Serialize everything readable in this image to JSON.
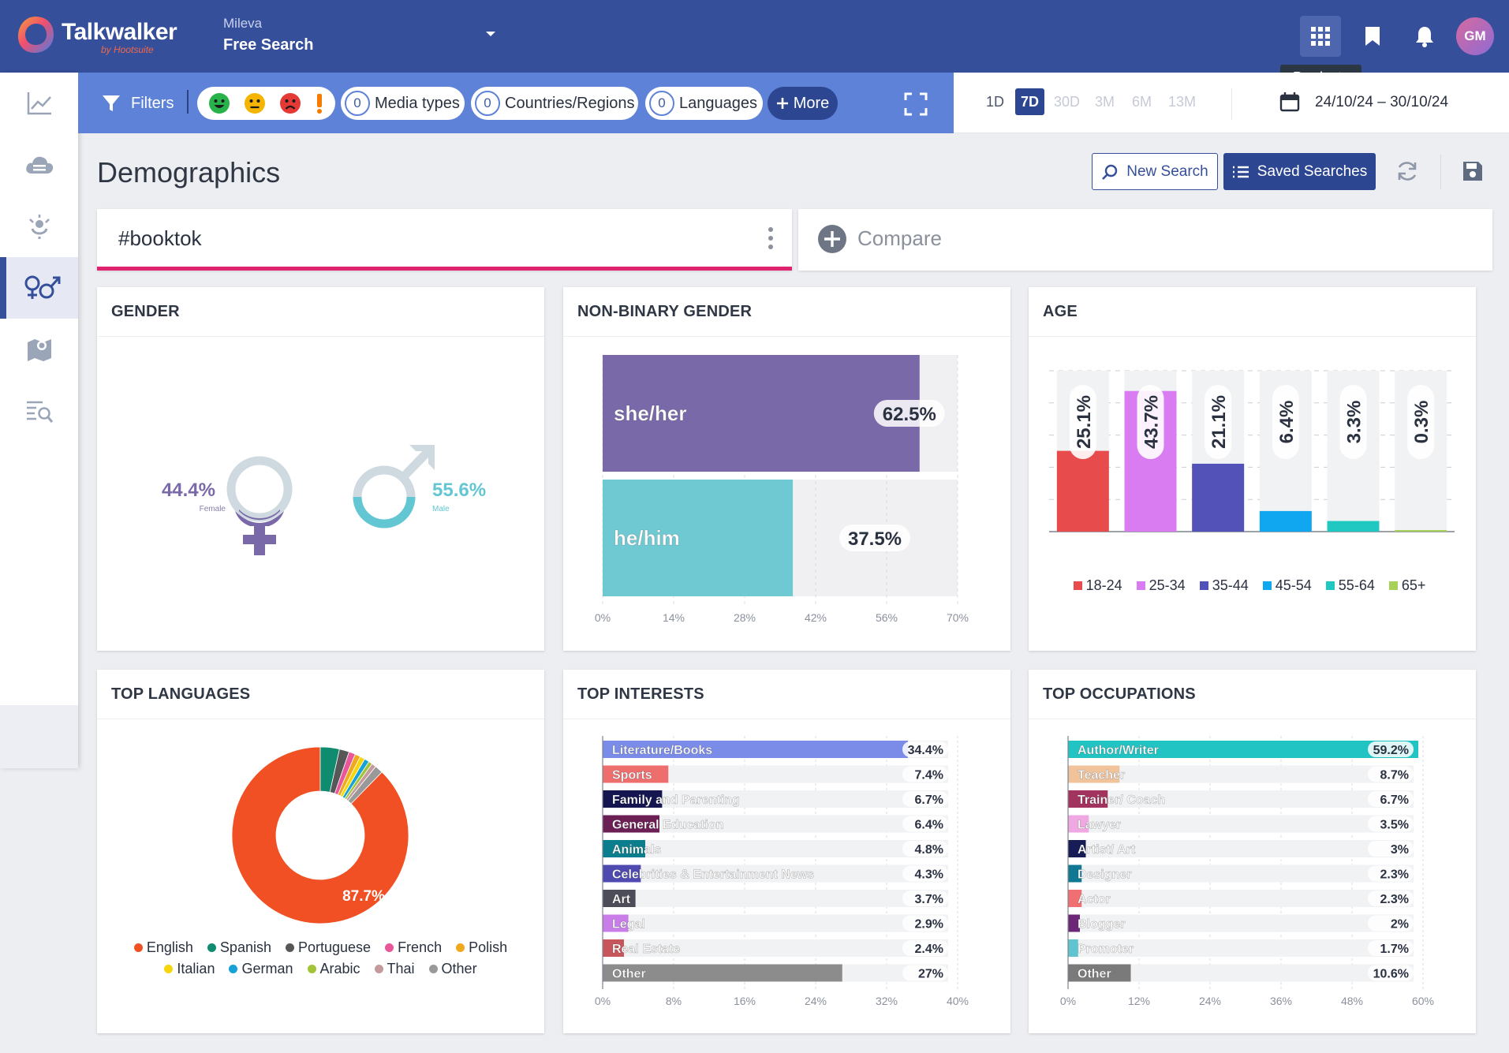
{
  "header": {
    "brand": "Talkwalker",
    "brand_sub": "by Hootsuite",
    "project": "Mileva",
    "search_title": "Free Search",
    "avatar_initials": "GM",
    "tooltip": "Products"
  },
  "sidebar": {
    "items": [
      {
        "icon": "line-chart-icon"
      },
      {
        "icon": "cloud-icon"
      },
      {
        "icon": "influencer-icon"
      },
      {
        "icon": "gender-icon"
      },
      {
        "icon": "map-icon"
      },
      {
        "icon": "search-list-icon"
      }
    ],
    "active_index": 3,
    "expand_icon": "chevron-right-icon"
  },
  "filters": {
    "label": "Filters",
    "sentiments": [
      {
        "name": "positive",
        "color": "#27b24a"
      },
      {
        "name": "neutral",
        "color": "#f4b400"
      },
      {
        "name": "negative",
        "color": "#e53935"
      },
      {
        "name": "alert",
        "color": "#f57c00"
      }
    ],
    "media_types": {
      "count": "0",
      "label": "Media types"
    },
    "countries": {
      "count": "0",
      "label": "Countries/Regions"
    },
    "languages": {
      "count": "0",
      "label": "Languages"
    },
    "more": "More"
  },
  "periods": {
    "items": [
      "1D",
      "7D",
      "30D",
      "3M",
      "6M",
      "13M"
    ],
    "selected": "7D",
    "date_range": "24/10/24 – 30/10/24"
  },
  "page": {
    "title": "Demographics",
    "new_search": "New Search",
    "saved_searches": "Saved Searches"
  },
  "query": {
    "text": "#booktok",
    "compare": "Compare"
  },
  "gender": {
    "title": "GENDER",
    "female_pct": "44.4%",
    "female_label": "Female",
    "male_pct": "55.6%",
    "male_label": "Male",
    "female_color": "#7a69a9",
    "male_color": "#63c7d3"
  },
  "nonbinary": {
    "title": "NON-BINARY GENDER"
  },
  "age": {
    "title": "AGE"
  },
  "languages": {
    "title": "TOP LANGUAGES",
    "center_label": "87.7%"
  },
  "interests": {
    "title": "TOP INTERESTS"
  },
  "occupations": {
    "title": "TOP OCCUPATIONS"
  },
  "chart_data": [
    {
      "id": "nonbinary",
      "type": "bar",
      "orientation": "horizontal",
      "categories": [
        "she/her",
        "he/him"
      ],
      "values": [
        62.5,
        37.5
      ],
      "value_labels": [
        "62.5%",
        "37.5%"
      ],
      "colors": [
        "#7a69a9",
        "#6fc9d3"
      ],
      "xlim": [
        0,
        70
      ],
      "ticks": [
        "0%",
        "14%",
        "28%",
        "42%",
        "56%",
        "70%"
      ],
      "grid": true
    },
    {
      "id": "age",
      "type": "bar",
      "categories": [
        "18-24",
        "25-34",
        "35-44",
        "45-54",
        "55-64",
        "65+"
      ],
      "values": [
        25.1,
        43.7,
        21.1,
        6.4,
        3.3,
        0.3
      ],
      "value_labels": [
        "25.1%",
        "43.7%",
        "21.1%",
        "6.4%",
        "3.3%",
        "0.3%"
      ],
      "colors": [
        "#e84b4b",
        "#d97cf2",
        "#5252b8",
        "#10a6f0",
        "#21c8c1",
        "#a8d15a"
      ],
      "ylim": [
        0,
        50
      ],
      "legend": "bottom",
      "grid": true
    },
    {
      "id": "languages",
      "type": "pie",
      "donut": true,
      "categories": [
        "English",
        "Spanish",
        "Portuguese",
        "French",
        "Polish",
        "Italian",
        "German",
        "Arabic",
        "Thai",
        "Other"
      ],
      "values": [
        87.7,
        3.5,
        1.8,
        1.2,
        1.0,
        0.9,
        0.9,
        0.7,
        0.8,
        1.5
      ],
      "colors": [
        "#f05023",
        "#0f8b70",
        "#575757",
        "#e9569a",
        "#f0a91c",
        "#f7d50c",
        "#16a1d7",
        "#a2c437",
        "#c49a9a",
        "#999999"
      ],
      "legend": "bottom"
    },
    {
      "id": "interests",
      "type": "bar",
      "orientation": "horizontal",
      "categories": [
        "Literature/Books",
        "Sports",
        "Family and Parenting",
        "General Education",
        "Animals",
        "Celebrities & Entertainment News",
        "Art",
        "Legal",
        "Real Estate",
        "Other"
      ],
      "values": [
        34.4,
        7.4,
        6.7,
        6.4,
        4.8,
        4.3,
        3.7,
        2.9,
        2.4,
        27
      ],
      "value_labels": [
        "34.4%",
        "7.4%",
        "6.7%",
        "6.4%",
        "4.8%",
        "4.3%",
        "3.7%",
        "2.9%",
        "2.4%",
        "27%"
      ],
      "colors": [
        "#7b8ce8",
        "#ee6e6e",
        "#151650",
        "#6c1f55",
        "#0a7e8c",
        "#4e4ab0",
        "#4d4d5a",
        "#c87de8",
        "#c6565c",
        "#8c8c8c"
      ],
      "xlim": [
        0,
        40
      ],
      "ticks": [
        "0%",
        "8%",
        "16%",
        "24%",
        "32%",
        "40%"
      ],
      "grid": true
    },
    {
      "id": "occupations",
      "type": "bar",
      "orientation": "horizontal",
      "categories": [
        "Author/Writer",
        "Teacher",
        "Trainer/ Coach",
        "Lawyer",
        "Artist/ Art",
        "Designer",
        "Actor",
        "Blogger",
        "Promoter",
        "Other"
      ],
      "values": [
        59.2,
        8.7,
        6.7,
        3.5,
        3,
        2.3,
        2.3,
        2,
        1.7,
        10.6
      ],
      "value_labels": [
        "59.2%",
        "8.7%",
        "6.7%",
        "3.5%",
        "3%",
        "2.3%",
        "2.3%",
        "2%",
        "1.7%",
        "10.6%"
      ],
      "colors": [
        "#22c3c3",
        "#f0c39a",
        "#a2335e",
        "#f0a8e3",
        "#171b56",
        "#117893",
        "#f06f72",
        "#6c2777",
        "#60c3d0",
        "#7a7a7a"
      ],
      "xlim": [
        0,
        60
      ],
      "ticks": [
        "0%",
        "12%",
        "24%",
        "36%",
        "48%",
        "60%"
      ],
      "grid": true
    }
  ]
}
